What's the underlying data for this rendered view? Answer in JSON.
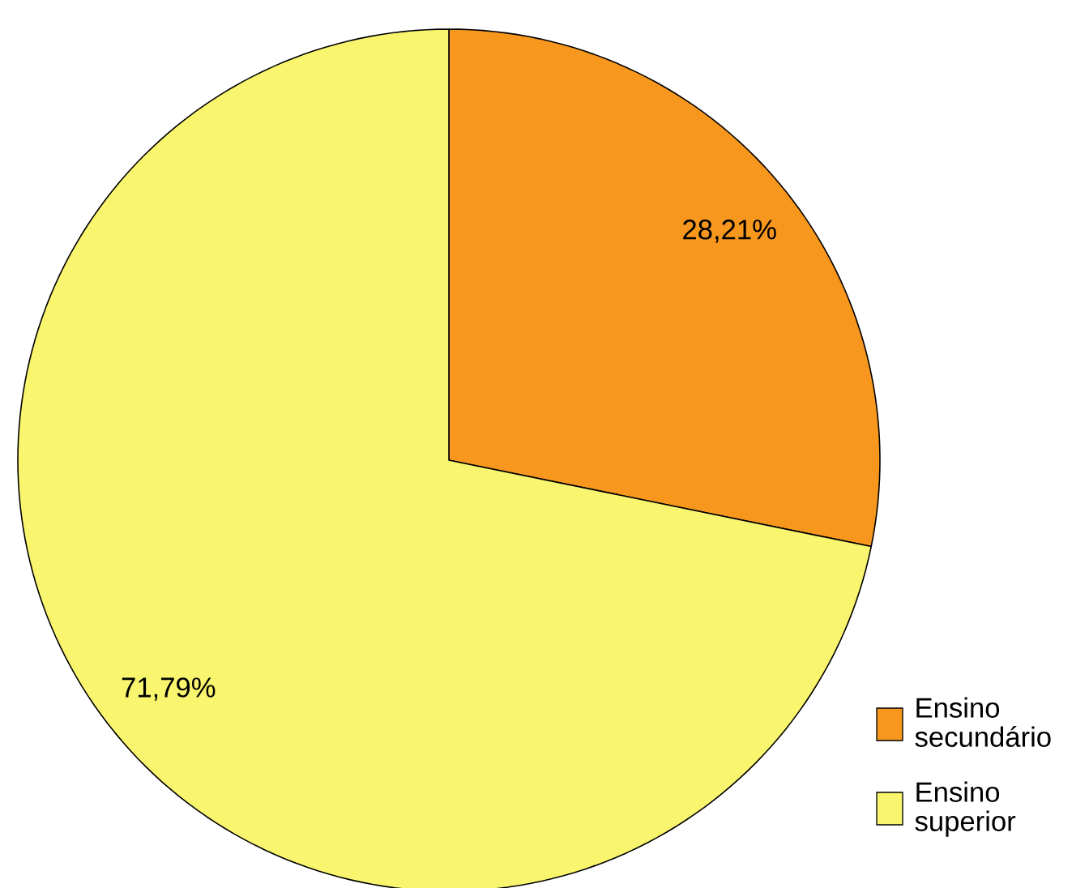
{
  "chart_data": {
    "type": "pie",
    "categories": [
      "Ensino secundário",
      "Ensino superior"
    ],
    "values": [
      28.21,
      71.79
    ],
    "colors": [
      "#f7971e",
      "#f9f56f"
    ],
    "value_labels": [
      "28,21%",
      "71,79%"
    ],
    "legend": "bottom right"
  }
}
